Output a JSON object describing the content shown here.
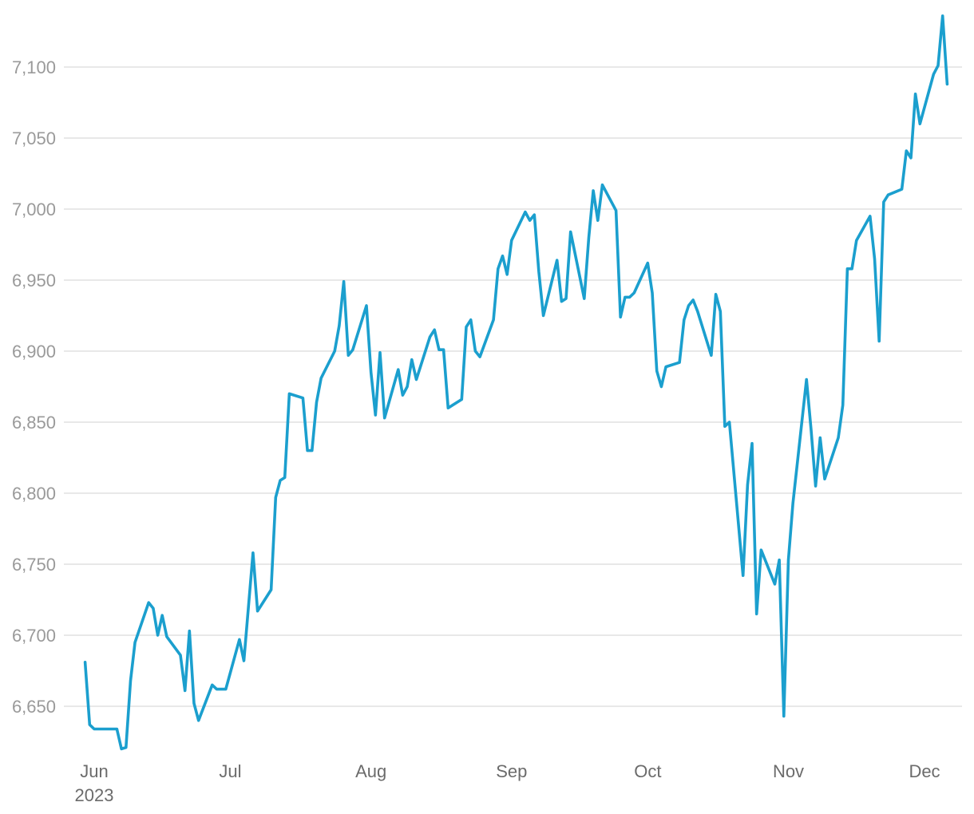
{
  "chart_data": {
    "type": "line",
    "title": "",
    "xlabel": "",
    "ylabel": "",
    "ylim": [
      6620,
      7135
    ],
    "grid": true,
    "line_color": "#1b9fce",
    "y_ticks": [
      {
        "value": 6650,
        "label": "6,650"
      },
      {
        "value": 6700,
        "label": "6,700"
      },
      {
        "value": 6750,
        "label": "6,750"
      },
      {
        "value": 6800,
        "label": "6,800"
      },
      {
        "value": 6850,
        "label": "6,850"
      },
      {
        "value": 6900,
        "label": "6,900"
      },
      {
        "value": 6950,
        "label": "6,950"
      },
      {
        "value": 7000,
        "label": "7,000"
      },
      {
        "value": 7050,
        "label": "7,050"
      },
      {
        "value": 7100,
        "label": "7,100"
      }
    ],
    "x_ticks": [
      {
        "date": "2023-06-01",
        "label": "Jun",
        "sublabel": "2023"
      },
      {
        "date": "2023-07-01",
        "label": "Jul"
      },
      {
        "date": "2023-08-01",
        "label": "Aug"
      },
      {
        "date": "2023-09-01",
        "label": "Sep"
      },
      {
        "date": "2023-10-01",
        "label": "Oct"
      },
      {
        "date": "2023-11-01",
        "label": "Nov"
      },
      {
        "date": "2023-12-01",
        "label": "Dec"
      }
    ],
    "series": [
      {
        "values": [
          [
            "2023-05-30",
            6681
          ],
          [
            "2023-05-31",
            6637
          ],
          [
            "2023-06-01",
            6634
          ],
          [
            "2023-06-02",
            6634
          ],
          [
            "2023-06-05",
            6634
          ],
          [
            "2023-06-06",
            6634
          ],
          [
            "2023-06-07",
            6620
          ],
          [
            "2023-06-08",
            6621
          ],
          [
            "2023-06-09",
            6668
          ],
          [
            "2023-06-10",
            6695
          ],
          [
            "2023-06-13",
            6723
          ],
          [
            "2023-06-14",
            6719
          ],
          [
            "2023-06-15",
            6700
          ],
          [
            "2023-06-16",
            6714
          ],
          [
            "2023-06-17",
            6699
          ],
          [
            "2023-06-20",
            6686
          ],
          [
            "2023-06-21",
            6661
          ],
          [
            "2023-06-22",
            6703
          ],
          [
            "2023-06-23",
            6652
          ],
          [
            "2023-06-24",
            6640
          ],
          [
            "2023-06-27",
            6665
          ],
          [
            "2023-06-28",
            6662
          ],
          [
            "2023-06-29",
            6662
          ],
          [
            "2023-06-30",
            6662
          ],
          [
            "2023-07-03",
            6697
          ],
          [
            "2023-07-04",
            6682
          ],
          [
            "2023-07-06",
            6758
          ],
          [
            "2023-07-07",
            6717
          ],
          [
            "2023-07-10",
            6732
          ],
          [
            "2023-07-11",
            6797
          ],
          [
            "2023-07-12",
            6809
          ],
          [
            "2023-07-13",
            6811
          ],
          [
            "2023-07-14",
            6870
          ],
          [
            "2023-07-17",
            6867
          ],
          [
            "2023-07-18",
            6830
          ],
          [
            "2023-07-19",
            6830
          ],
          [
            "2023-07-20",
            6864
          ],
          [
            "2023-07-21",
            6881
          ],
          [
            "2023-07-24",
            6900
          ],
          [
            "2023-07-25",
            6918
          ],
          [
            "2023-07-26",
            6949
          ],
          [
            "2023-07-27",
            6897
          ],
          [
            "2023-07-28",
            6901
          ],
          [
            "2023-07-31",
            6932
          ],
          [
            "2023-08-01",
            6885
          ],
          [
            "2023-08-02",
            6855
          ],
          [
            "2023-08-03",
            6899
          ],
          [
            "2023-08-04",
            6853
          ],
          [
            "2023-08-07",
            6887
          ],
          [
            "2023-08-08",
            6869
          ],
          [
            "2023-08-09",
            6875
          ],
          [
            "2023-08-10",
            6894
          ],
          [
            "2023-08-11",
            6880
          ],
          [
            "2023-08-14",
            6910
          ],
          [
            "2023-08-15",
            6915
          ],
          [
            "2023-08-16",
            6901
          ],
          [
            "2023-08-17",
            6901
          ],
          [
            "2023-08-18",
            6860
          ],
          [
            "2023-08-21",
            6866
          ],
          [
            "2023-08-22",
            6917
          ],
          [
            "2023-08-23",
            6922
          ],
          [
            "2023-08-24",
            6900
          ],
          [
            "2023-08-25",
            6896
          ],
          [
            "2023-08-28",
            6922
          ],
          [
            "2023-08-29",
            6958
          ],
          [
            "2023-08-30",
            6967
          ],
          [
            "2023-08-31",
            6954
          ],
          [
            "2023-09-01",
            6978
          ],
          [
            "2023-09-04",
            6998
          ],
          [
            "2023-09-05",
            6992
          ],
          [
            "2023-09-06",
            6996
          ],
          [
            "2023-09-07",
            6956
          ],
          [
            "2023-09-08",
            6925
          ],
          [
            "2023-09-11",
            6964
          ],
          [
            "2023-09-12",
            6935
          ],
          [
            "2023-09-13",
            6937
          ],
          [
            "2023-09-14",
            6984
          ],
          [
            "2023-09-17",
            6937
          ],
          [
            "2023-09-18",
            6980
          ],
          [
            "2023-09-19",
            7013
          ],
          [
            "2023-09-20",
            6992
          ],
          [
            "2023-09-21",
            7017
          ],
          [
            "2023-09-24",
            6999
          ],
          [
            "2023-09-25",
            6924
          ],
          [
            "2023-09-26",
            6938
          ],
          [
            "2023-09-27",
            6938
          ],
          [
            "2023-09-28",
            6941
          ],
          [
            "2023-10-01",
            6962
          ],
          [
            "2023-10-02",
            6941
          ],
          [
            "2023-10-03",
            6886
          ],
          [
            "2023-10-04",
            6875
          ],
          [
            "2023-10-05",
            6889
          ],
          [
            "2023-10-08",
            6892
          ],
          [
            "2023-10-09",
            6922
          ],
          [
            "2023-10-10",
            6932
          ],
          [
            "2023-10-11",
            6936
          ],
          [
            "2023-10-12",
            6928
          ],
          [
            "2023-10-15",
            6897
          ],
          [
            "2023-10-16",
            6940
          ],
          [
            "2023-10-17",
            6928
          ],
          [
            "2023-10-18",
            6847
          ],
          [
            "2023-10-19",
            6850
          ],
          [
            "2023-10-22",
            6742
          ],
          [
            "2023-10-23",
            6806
          ],
          [
            "2023-10-24",
            6835
          ],
          [
            "2023-10-25",
            6715
          ],
          [
            "2023-10-26",
            6760
          ],
          [
            "2023-10-29",
            6736
          ],
          [
            "2023-10-30",
            6753
          ],
          [
            "2023-10-31",
            6643
          ],
          [
            "2023-11-01",
            6753
          ],
          [
            "2023-11-02",
            6793
          ],
          [
            "2023-11-05",
            6880
          ],
          [
            "2023-11-06",
            6845
          ],
          [
            "2023-11-07",
            6805
          ],
          [
            "2023-11-08",
            6839
          ],
          [
            "2023-11-09",
            6810
          ],
          [
            "2023-11-12",
            6839
          ],
          [
            "2023-11-13",
            6862
          ],
          [
            "2023-11-14",
            6958
          ],
          [
            "2023-11-15",
            6958
          ],
          [
            "2023-11-16",
            6978
          ],
          [
            "2023-11-19",
            6995
          ],
          [
            "2023-11-20",
            6965
          ],
          [
            "2023-11-21",
            6907
          ],
          [
            "2023-11-22",
            7005
          ],
          [
            "2023-11-23",
            7010
          ],
          [
            "2023-11-26",
            7014
          ],
          [
            "2023-11-27",
            7041
          ],
          [
            "2023-11-28",
            7036
          ],
          [
            "2023-11-29",
            7081
          ],
          [
            "2023-11-30",
            7060
          ],
          [
            "2023-12-03",
            7095
          ],
          [
            "2023-12-04",
            7101
          ],
          [
            "2023-12-05",
            7136
          ],
          [
            "2023-12-06",
            7088
          ]
        ]
      }
    ]
  }
}
